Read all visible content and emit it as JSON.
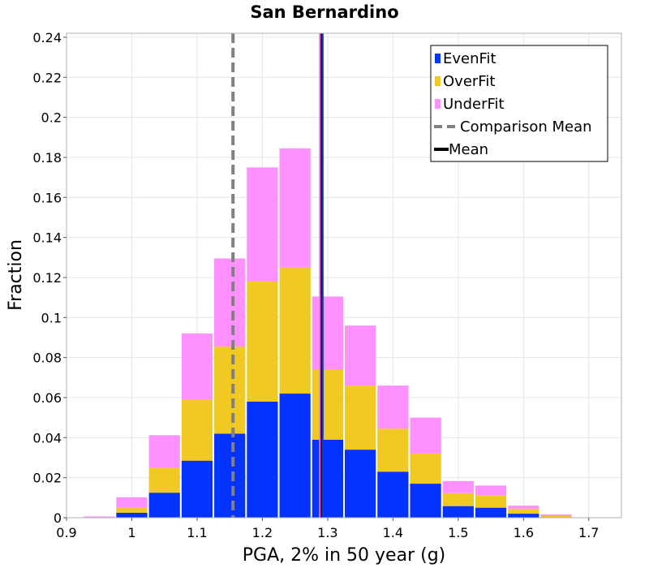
{
  "chart_data": {
    "type": "bar",
    "stacked": true,
    "title": "San Bernardino",
    "xlabel": "PGA, 2% in 50 year (g)",
    "ylabel": "Fraction",
    "xlim": [
      0.9,
      1.75
    ],
    "ylim": [
      0,
      0.242
    ],
    "xticks": [
      "0.9",
      "1",
      "1.1",
      "1.2",
      "1.3",
      "1.4",
      "1.5",
      "1.6",
      "1.7"
    ],
    "yticks": [
      "0",
      "0.02",
      "0.04",
      "0.06",
      "0.08",
      "0.1",
      "0.12",
      "0.14",
      "0.16",
      "0.18",
      "0.2",
      "0.22",
      "0.24"
    ],
    "grid": true,
    "legend_position": "top-right",
    "bin_width": 0.05,
    "x": [
      0.95,
      1.0,
      1.05,
      1.1,
      1.15,
      1.2,
      1.25,
      1.3,
      1.35,
      1.4,
      1.45,
      1.5,
      1.55,
      1.6,
      1.65,
      1.7,
      1.75
    ],
    "series": [
      {
        "name": "EvenFit",
        "color": "#0433ff",
        "values": [
          0,
          0.0025,
          0.0125,
          0.0285,
          0.042,
          0.058,
          0.062,
          0.039,
          0.034,
          0.023,
          0.017,
          0.0058,
          0.005,
          0.002,
          0.0002,
          0,
          0
        ]
      },
      {
        "name": "OverFit",
        "color": "#f0c922",
        "values": [
          0,
          0.0025,
          0.0125,
          0.0305,
          0.0435,
          0.06,
          0.063,
          0.035,
          0.032,
          0.0215,
          0.015,
          0.0065,
          0.0063,
          0.0024,
          0.0006,
          0,
          0
        ]
      },
      {
        "name": "UnderFit",
        "color": "#ff90ff",
        "values": [
          0.0006,
          0.0052,
          0.0162,
          0.033,
          0.044,
          0.057,
          0.0595,
          0.0365,
          0.03,
          0.0215,
          0.018,
          0.006,
          0.0048,
          0.0016,
          0.0008,
          0.0002,
          0
        ]
      }
    ],
    "reference_lines": [
      {
        "name": "Comparison Mean",
        "x": 1.155,
        "color": "#808080",
        "style": "dashed"
      },
      {
        "name": "Mean",
        "x": 1.29,
        "color": "#000000",
        "style": "solid"
      }
    ],
    "mean_lines": [
      {
        "x": 1.288,
        "color": "#ff66ff"
      },
      {
        "x": 1.2925,
        "color": "#0433ff"
      }
    ]
  }
}
